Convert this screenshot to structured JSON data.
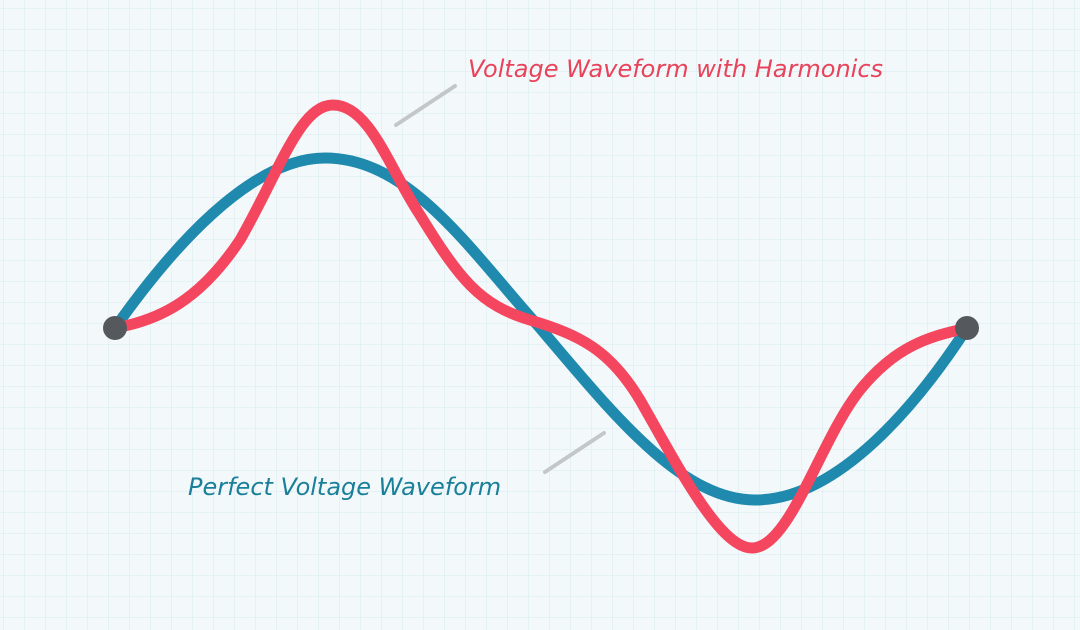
{
  "labels": {
    "harmonics": "Voltage Waveform with Harmonics",
    "perfect": "Perfect Voltage Waveform"
  }
}
